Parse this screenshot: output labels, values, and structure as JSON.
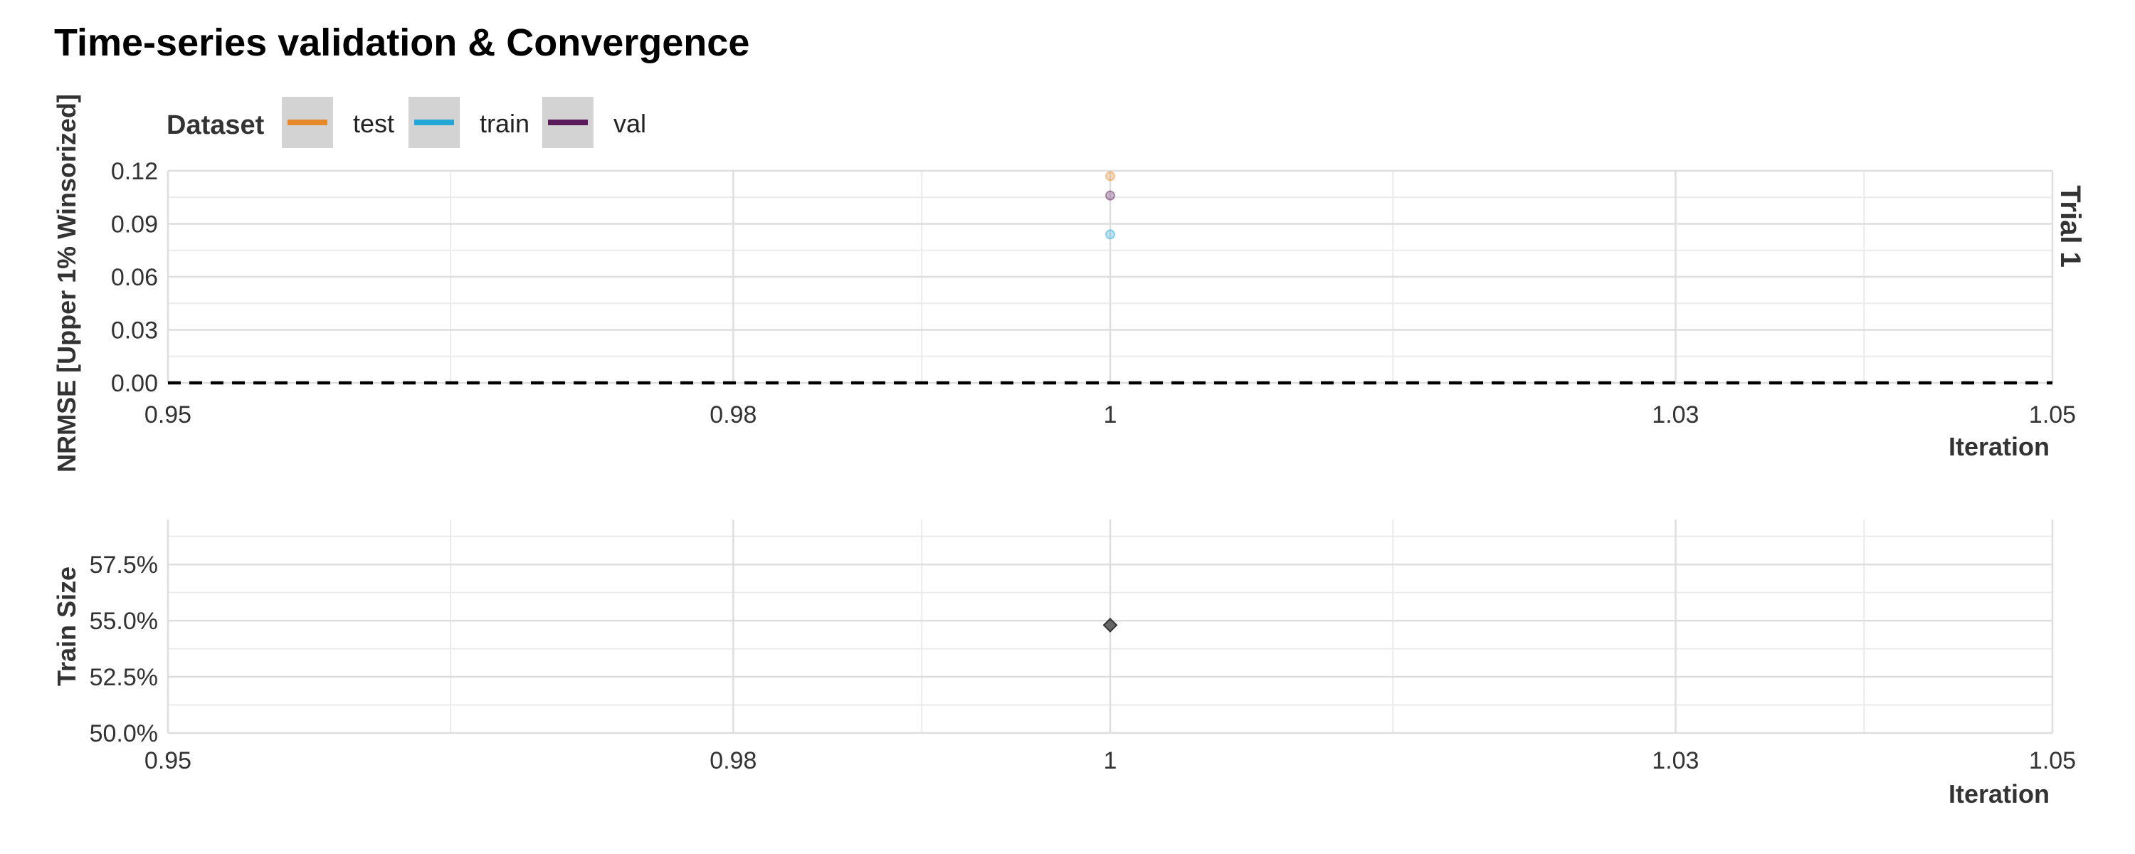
{
  "title": "Time-series validation & Convergence",
  "legend": {
    "title": "Dataset",
    "items": [
      {
        "label": "test",
        "color": "#E6892B"
      },
      {
        "label": "train",
        "color": "#22A7D6"
      },
      {
        "label": "val",
        "color": "#5A1A5C"
      }
    ]
  },
  "chart_data": [
    {
      "type": "scatter",
      "facet_label": "Trial 1",
      "xlabel": "Iteration",
      "ylabel": "NRMSE [Upper 1% Winsorized]",
      "xlim": [
        0.95,
        1.05
      ],
      "ylim": [
        0,
        0.12
      ],
      "xticks": [
        0.95,
        0.98,
        1,
        1.03,
        1.05
      ],
      "xtick_labels": [
        "0.95",
        "0.98",
        "1",
        "1.03",
        "1.05"
      ],
      "yticks": [
        0,
        0.03,
        0.06,
        0.09,
        0.12
      ],
      "ytick_labels": [
        "0.00",
        "0.03",
        "0.06",
        "0.09",
        "0.12"
      ],
      "reference_line": {
        "y": 0,
        "style": "dashed"
      },
      "grid": true,
      "legend_position": "top-left",
      "series": [
        {
          "name": "test",
          "x": [
            1
          ],
          "y": [
            0.117
          ],
          "color": "#E6892B"
        },
        {
          "name": "train",
          "x": [
            1
          ],
          "y": [
            0.084
          ],
          "color": "#22A7D6"
        },
        {
          "name": "val",
          "x": [
            1
          ],
          "y": [
            0.106
          ],
          "color": "#5A1A5C"
        }
      ]
    },
    {
      "type": "scatter",
      "xlabel": "Iteration",
      "ylabel": "Train Size",
      "xlim": [
        0.95,
        1.05
      ],
      "ylim": [
        50,
        59.5
      ],
      "xticks": [
        0.95,
        0.98,
        1,
        1.03,
        1.05
      ],
      "xtick_labels": [
        "0.95",
        "0.98",
        "1",
        "1.03",
        "1.05"
      ],
      "yticks": [
        50,
        52.5,
        55,
        57.5
      ],
      "ytick_labels": [
        "50.0%",
        "52.5%",
        "55.0%",
        "57.5%"
      ],
      "grid": true,
      "series": [
        {
          "x": [
            1
          ],
          "y": [
            54.8
          ],
          "color": "#555555",
          "marker": "diamond"
        }
      ]
    }
  ]
}
